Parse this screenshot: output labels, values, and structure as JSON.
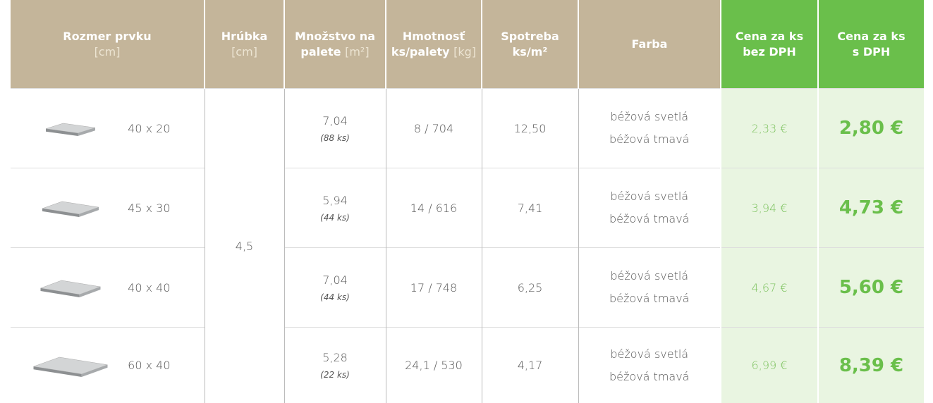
{
  "table": {
    "header": [
      {
        "name": "Rozmer prvku",
        "unit": "[cm]"
      },
      {
        "name": "Hrúbka",
        "unit": "[cm]"
      },
      {
        "name": "Množstvo na",
        "name2": "palete",
        "unit": "[m²]"
      },
      {
        "name": "Hmotnosť",
        "name2": "ks/palety",
        "unit": "[kg]"
      },
      {
        "name": "Spotreba",
        "name2": "ks/m²"
      },
      {
        "name": "Farba"
      },
      {
        "name": "Cena za ks",
        "name2": "bez DPH"
      },
      {
        "name": "Cena za ks",
        "name2": "s DPH"
      }
    ],
    "thickness": "4,5",
    "rows": [
      {
        "size": "40 x 20",
        "qty": "7,04",
        "pcs": "(88 ks)",
        "weight": "8 / 704",
        "consumption": "12,50",
        "colors": [
          "béžová svetlá",
          "béžová tmavá"
        ],
        "price": "2,33 €",
        "price_vat": "2,80 €"
      },
      {
        "size": "45 x 30",
        "qty": "5,94",
        "pcs": "(44 ks)",
        "weight": "14 / 616",
        "consumption": "7,41",
        "colors": [
          "béžová svetlá",
          "béžová tmavá"
        ],
        "price": "3,94 €",
        "price_vat": "4,73 €"
      },
      {
        "size": "40 x 40",
        "qty": "7,04",
        "pcs": "(44 ks)",
        "weight": "17 / 748",
        "consumption": "6,25",
        "colors": [
          "béžová svetlá",
          "béžová tmavá"
        ],
        "price": "4,67 €",
        "price_vat": "5,60 €"
      },
      {
        "size": "60 x 40",
        "qty": "5,28",
        "pcs": "(22 ks)",
        "weight": "24,1 / 530",
        "consumption": "4,17",
        "colors": [
          "béžová svetlá",
          "béžová tmavá"
        ],
        "price": "6,99 €",
        "price_vat": "8,39 €"
      }
    ]
  }
}
